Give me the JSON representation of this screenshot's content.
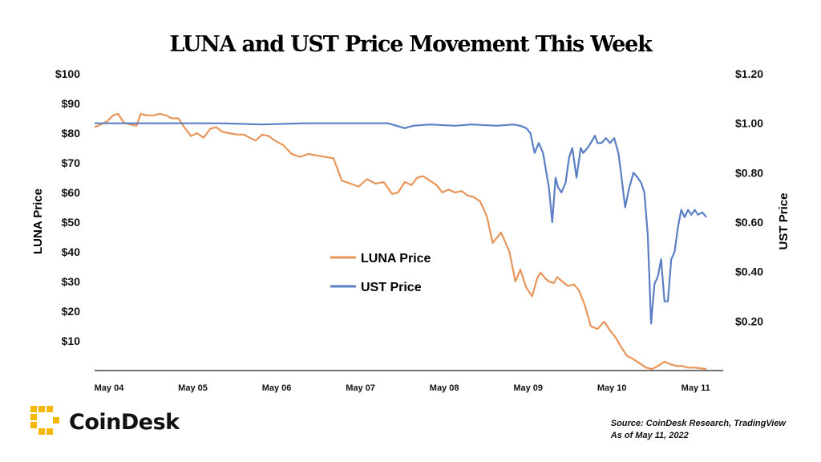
{
  "chart_data": {
    "type": "line",
    "title": "LUNA and UST Price Movement This Week",
    "ylabel_left": "LUNA Price",
    "ylabel_right": "UST Price",
    "y_left": {
      "ylim": [
        0,
        100
      ],
      "ticks": [
        10,
        20,
        30,
        40,
        50,
        60,
        70,
        80,
        90,
        100
      ],
      "tick_labels": [
        "$10",
        "$20",
        "$30",
        "$40",
        "$50",
        "$60",
        "$70",
        "$80",
        "$90",
        "$100"
      ]
    },
    "y_right": {
      "ylim": [
        0,
        1.2
      ],
      "ticks": [
        0.2,
        0.4,
        0.6,
        0.8,
        1.0,
        1.2
      ],
      "tick_labels": [
        "$0.20",
        "$0.40",
        "$0.60",
        "$0.80",
        "$1.00",
        "$1.20"
      ]
    },
    "x_categories": [
      "May 04",
      "May 05",
      "May 06",
      "May 07",
      "May 08",
      "May 09",
      "May 10",
      "May 11"
    ],
    "x_range": [
      0,
      7.5
    ],
    "grid": false,
    "legend_position": "center",
    "series": [
      {
        "name": "LUNA Price",
        "axis": "left",
        "color": "#E8955A",
        "x": [
          0,
          0.08,
          0.15,
          0.22,
          0.28,
          0.35,
          0.42,
          0.5,
          0.55,
          0.62,
          0.7,
          0.78,
          0.85,
          0.92,
          1.0,
          1.07,
          1.15,
          1.22,
          1.3,
          1.38,
          1.45,
          1.52,
          1.6,
          1.7,
          1.78,
          1.85,
          1.92,
          2.0,
          2.08,
          2.15,
          2.25,
          2.35,
          2.45,
          2.55,
          2.65,
          2.75,
          2.85,
          2.95,
          3.05,
          3.15,
          3.25,
          3.35,
          3.45,
          3.55,
          3.62,
          3.7,
          3.78,
          3.85,
          3.92,
          4.0,
          4.08,
          4.15,
          4.22,
          4.3,
          4.38,
          4.45,
          4.52,
          4.6,
          4.68,
          4.75,
          4.85,
          4.95,
          5.02,
          5.08,
          5.15,
          5.22,
          5.28,
          5.32,
          5.38,
          5.42,
          5.48,
          5.52,
          5.58,
          5.65,
          5.72,
          5.78,
          5.85,
          5.92,
          6.0,
          6.08,
          6.15,
          6.22,
          6.28,
          6.35,
          6.42,
          6.5,
          6.58,
          6.65,
          6.72,
          6.8,
          6.88,
          6.95,
          7.02,
          7.08,
          7.15,
          7.22,
          7.3
        ],
        "values": [
          82,
          83,
          84,
          86,
          86.5,
          83.5,
          83,
          82.5,
          86.5,
          86,
          86,
          86.5,
          86,
          85,
          85,
          82,
          79,
          80,
          78.5,
          81.5,
          82,
          80.5,
          80,
          79.5,
          79.5,
          78.5,
          77.5,
          79.5,
          79,
          77.5,
          76,
          73,
          72,
          73,
          72.5,
          72,
          71.5,
          64,
          63,
          62,
          64.5,
          63,
          63.5,
          59.5,
          60,
          63.5,
          62.5,
          65,
          65.5,
          64,
          62.5,
          60,
          61,
          60,
          60.5,
          59,
          58.5,
          57,
          52,
          43,
          46.5,
          40,
          30,
          34,
          28,
          25,
          31,
          33,
          31,
          30,
          29.5,
          31.5,
          30,
          28.5,
          29,
          27,
          22,
          15,
          14,
          16.5,
          13.5,
          11,
          8,
          5,
          4,
          2.5,
          1,
          0.5,
          1.5,
          3,
          2,
          1.5,
          1.5,
          1,
          1,
          0.8,
          0.5
        ]
      },
      {
        "name": "UST Price",
        "axis": "right",
        "color": "#5B7FC4",
        "x": [
          0,
          0.5,
          1.0,
          1.5,
          2.0,
          2.5,
          2.8,
          3.0,
          3.5,
          3.7,
          3.8,
          4.0,
          4.3,
          4.5,
          4.8,
          5.0,
          5.08,
          5.15,
          5.2,
          5.25,
          5.3,
          5.35,
          5.42,
          5.46,
          5.5,
          5.53,
          5.57,
          5.62,
          5.66,
          5.7,
          5.75,
          5.8,
          5.83,
          5.88,
          5.92,
          5.97,
          6.0,
          6.05,
          6.1,
          6.15,
          6.2,
          6.25,
          6.28,
          6.33,
          6.38,
          6.43,
          6.48,
          6.52,
          6.56,
          6.6,
          6.64,
          6.68,
          6.72,
          6.76,
          6.8,
          6.84,
          6.88,
          6.92,
          6.96,
          7.0,
          7.04,
          7.08,
          7.12,
          7.16,
          7.2,
          7.25,
          7.3
        ],
        "values": [
          1.0,
          1.0,
          1.0,
          1.0,
          0.995,
          1.0,
          1.0,
          1.0,
          1.0,
          0.98,
          0.99,
          0.995,
          0.99,
          0.995,
          0.99,
          0.995,
          0.99,
          0.98,
          0.96,
          0.88,
          0.92,
          0.88,
          0.74,
          0.6,
          0.78,
          0.74,
          0.72,
          0.76,
          0.86,
          0.9,
          0.78,
          0.9,
          0.88,
          0.9,
          0.92,
          0.95,
          0.92,
          0.92,
          0.94,
          0.92,
          0.94,
          0.88,
          0.8,
          0.66,
          0.74,
          0.8,
          0.78,
          0.76,
          0.72,
          0.55,
          0.19,
          0.35,
          0.38,
          0.45,
          0.28,
          0.28,
          0.45,
          0.48,
          0.58,
          0.65,
          0.62,
          0.65,
          0.63,
          0.65,
          0.63,
          0.64,
          0.62
        ]
      }
    ]
  },
  "logo": {
    "text": "CoinDesk",
    "icon": "coindesk-logo-icon",
    "color": "#F5B800"
  },
  "source": {
    "line1": "Source: CoinDesk Research, TradingView",
    "line2": "As of May 11, 2022"
  }
}
